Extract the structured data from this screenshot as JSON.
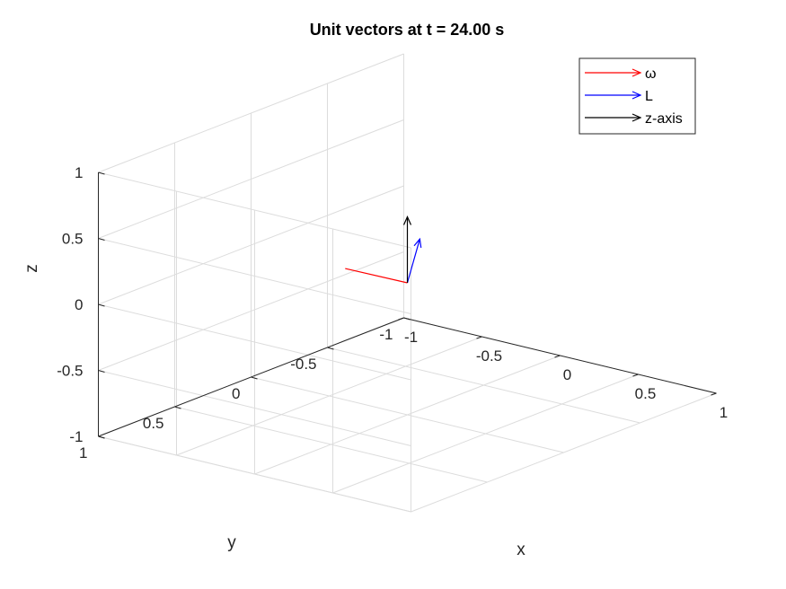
{
  "chart_data": {
    "type": "quiver3d",
    "title": "Unit vectors at t = 24.00 s",
    "xlabel": "x",
    "ylabel": "y",
    "zlabel": "z",
    "xlim": [
      -1,
      1
    ],
    "ylim": [
      -1,
      1
    ],
    "zlim": [
      -1,
      1
    ],
    "xticks": [
      "-1",
      "-0.5",
      "0",
      "0.5",
      "1"
    ],
    "yticks": [
      "-1",
      "-0.5",
      "0",
      "0.5",
      "1"
    ],
    "zticks": [
      "-1",
      "-0.5",
      "0",
      "0.5",
      "1"
    ],
    "grid": true,
    "legend_position": "top-right",
    "series": [
      {
        "name": "ω",
        "color": "#ff0000",
        "origin": [
          0,
          0,
          0
        ],
        "vector": [
          -0.31,
          0.09,
          0.06
        ]
      },
      {
        "name": "L",
        "color": "#0000ff",
        "origin": [
          0,
          0,
          0
        ],
        "vector": [
          0.06,
          -0.02,
          0.34
        ]
      },
      {
        "name": "z-axis",
        "color": "#000000",
        "origin": [
          0,
          0,
          0
        ],
        "vector": [
          0,
          0,
          0.5
        ]
      }
    ]
  }
}
